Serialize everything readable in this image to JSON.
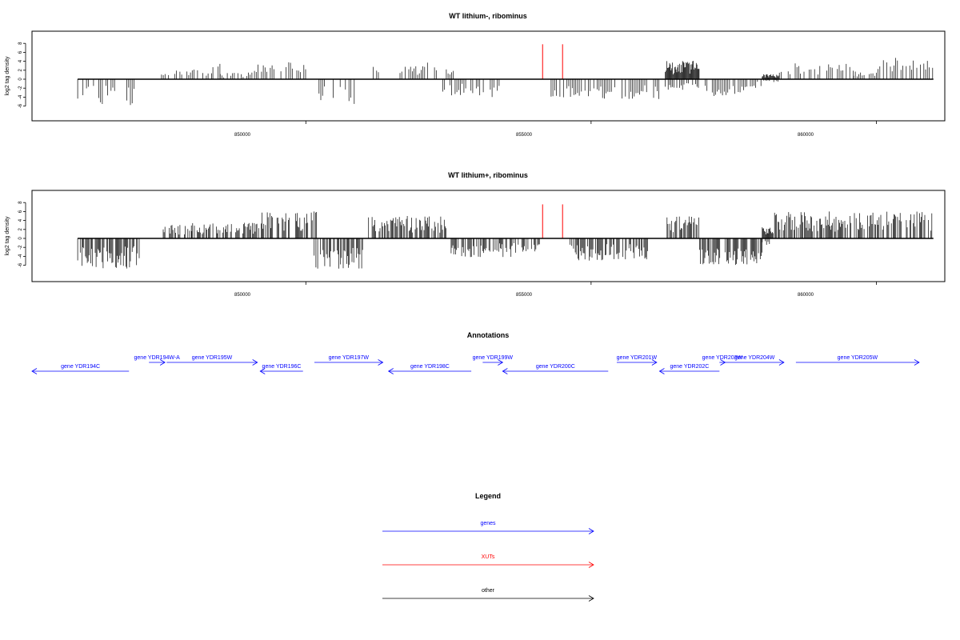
{
  "chart_data": [
    {
      "type": "bar",
      "title": "WT lithium-, ribominus",
      "ylabel": "log2 tag density",
      "xlabel": "",
      "yticks": [
        -6,
        -4,
        -2,
        0,
        2,
        4,
        6,
        8
      ],
      "ylim": [
        -7,
        8
      ],
      "xticks": [
        "850000",
        "855000",
        "860000"
      ],
      "xlim": [
        845200,
        861200
      ],
      "region": [
        846000,
        861000
      ],
      "series": [
        {
          "color": "#000000",
          "positive_segments": [
            [
              847470,
              847620,
              1.5
            ],
            [
              847700,
              848370,
              2.2
            ],
            [
              848370,
              848500,
              4.5
            ],
            [
              848500,
              849100,
              1.5
            ],
            [
              849100,
              849700,
              3.3
            ],
            [
              849700,
              849780,
              4.3
            ],
            [
              849780,
              850000,
              3.2
            ],
            [
              851180,
              851300,
              3.5
            ],
            [
              851650,
              852100,
              3.0
            ],
            [
              852100,
              852300,
              4.0
            ],
            [
              852400,
              852600,
              2.2
            ],
            [
              858300,
              859600,
              3.6
            ],
            [
              859600,
              860000,
              1.8
            ],
            [
              860000,
              861000,
              4.8
            ]
          ],
          "negative_segments": [
            [
              846000,
              847050,
              -5.8
            ],
            [
              850200,
              850900,
              -5.8
            ],
            [
              852400,
              853400,
              -4.0
            ],
            [
              854300,
              854800,
              -4.3
            ],
            [
              854800,
              856200,
              -4.5
            ],
            [
              857000,
              857180,
              -3.8
            ],
            [
              857180,
              857700,
              -3.6
            ],
            [
              857700,
              858000,
              -2.0
            ]
          ],
          "dense_segments": [
            [
              856300,
              856900,
              4.1
            ],
            [
              858000,
              858300,
              1.2
            ]
          ]
        },
        {
          "color": "#ff0000",
          "spikes": [
            [
              854150,
              7.8
            ],
            [
              854500,
              7.8
            ]
          ]
        }
      ]
    },
    {
      "type": "bar",
      "title": "WT lithium+, ribominus",
      "ylabel": "log2 tag density",
      "xlabel": "",
      "yticks": [
        -6,
        -4,
        -2,
        0,
        2,
        4,
        6,
        8
      ],
      "ylim": [
        -7,
        8
      ],
      "xticks": [
        "850000",
        "855000",
        "860000"
      ],
      "xlim": [
        845200,
        861200
      ],
      "region": [
        846000,
        861000
      ],
      "series": [
        {
          "color": "#000000",
          "positive_segments": [
            [
              847500,
              848000,
              3.0
            ],
            [
              848000,
              849200,
              3.5
            ],
            [
              849200,
              850200,
              6.0
            ],
            [
              851100,
              852500,
              5.0
            ],
            [
              856300,
              856900,
              5.0
            ],
            [
              858200,
              859200,
              6.0
            ],
            [
              859200,
              859600,
              5.0
            ],
            [
              859600,
              861000,
              6.0
            ]
          ],
          "negative_segments": [
            [
              846000,
              847100,
              -6.8
            ],
            [
              850100,
              851000,
              -6.8
            ],
            [
              852500,
              853600,
              -4.2
            ],
            [
              853600,
              854100,
              -3.5
            ],
            [
              854600,
              856000,
              -5.0
            ],
            [
              856900,
              858000,
              -6.0
            ]
          ],
          "dense_segments": [
            [
              858000,
              858200,
              2.5
            ]
          ]
        },
        {
          "color": "#ff0000",
          "spikes": [
            [
              854150,
              7.6
            ],
            [
              854500,
              7.6
            ]
          ]
        }
      ]
    },
    {
      "type": "annotation-track",
      "title": "Annotations",
      "genes": [
        {
          "label": "gene YDR194C",
          "start": 845200,
          "end": 846900,
          "strand": "-",
          "row": "lower"
        },
        {
          "label": "gene YDR194W-A",
          "start": 847250,
          "end": 847530,
          "strand": "+",
          "row": "upper"
        },
        {
          "label": "gene YDR195W",
          "start": 847560,
          "end": 849150,
          "strand": "+",
          "row": "upper"
        },
        {
          "label": "gene YDR196C",
          "start": 849200,
          "end": 849950,
          "strand": "-",
          "row": "lower"
        },
        {
          "label": "gene YDR197W",
          "start": 850150,
          "end": 851350,
          "strand": "+",
          "row": "upper"
        },
        {
          "label": "gene YDR198C",
          "start": 851450,
          "end": 852900,
          "strand": "-",
          "row": "lower"
        },
        {
          "label": "gene YDR199W",
          "start": 853100,
          "end": 853450,
          "strand": "+",
          "row": "upper"
        },
        {
          "label": "gene YDR200C",
          "start": 853450,
          "end": 855300,
          "strand": "-",
          "row": "lower"
        },
        {
          "label": "gene YDR201W",
          "start": 855450,
          "end": 856150,
          "strand": "+",
          "row": "upper"
        },
        {
          "label": "gene YDR202C",
          "start": 856200,
          "end": 857250,
          "strand": "-",
          "row": "lower"
        },
        {
          "label": "gene YDR203W",
          "start": 857250,
          "end": 857350,
          "strand": "+",
          "row": "upper"
        },
        {
          "label": "gene YDR204W",
          "start": 857350,
          "end": 858380,
          "strand": "+",
          "row": "upper"
        },
        {
          "label": "gene YDR205W",
          "start": 858590,
          "end": 860750,
          "strand": "+",
          "row": "upper"
        }
      ]
    },
    {
      "type": "legend",
      "title": "Legend",
      "items": [
        {
          "label": "genes",
          "color": "#0000ff"
        },
        {
          "label": "XUTs",
          "color": "#ff0000"
        },
        {
          "label": "other",
          "color": "#000000"
        }
      ]
    }
  ]
}
